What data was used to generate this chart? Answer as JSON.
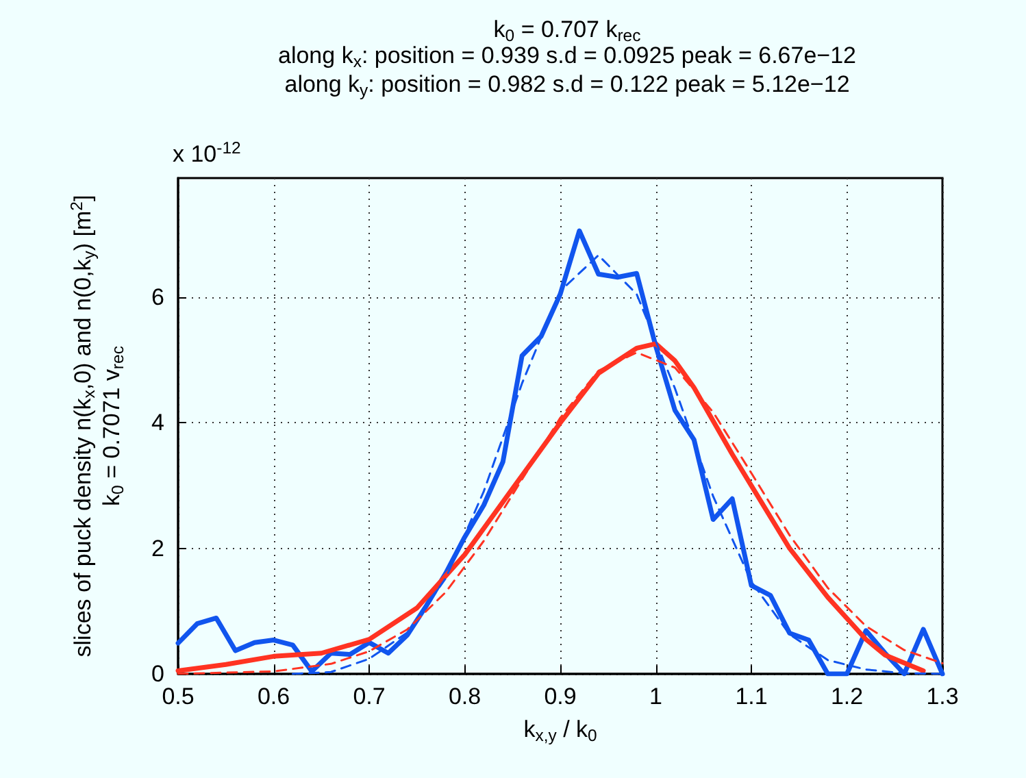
{
  "chart_data": {
    "type": "line",
    "title": "k$_{0}$ = 0.707 k$_{rec}$",
    "subtitle": "along k$_{x}$: position = 0.939 s.d = 0.0925 peak = 6.67e−12\nalong k$_{y}$: position = 0.982 s.d = 0.122 peak = 5.12e−12",
    "xlabel": "k$_{x,y}$ / k$_{0}$",
    "ylabel": "slices of puck density n(k$_{x}$,0) and n(0,k$_{y}$) [m$^{2}$]\nk$_{0}$ = 0.7071 v$_{rec}$",
    "annotations": [
      "x 10$^{-12}$"
    ],
    "series": [
      {
        "color": "#1155ee",
        "line_style": "solid",
        "x": [
          0.5,
          0.52,
          0.54,
          0.56,
          0.58,
          0.6,
          0.62,
          0.64,
          0.66,
          0.68,
          0.7,
          0.72,
          0.74,
          0.76,
          0.78,
          0.8,
          0.82,
          0.84,
          0.86,
          0.88,
          0.9,
          0.92,
          0.94,
          0.96,
          0.98,
          1.0,
          1.02,
          1.04,
          1.06,
          1.08,
          1.1,
          1.12,
          1.14,
          1.16,
          1.18,
          1.2,
          1.22,
          1.24,
          1.26,
          1.28,
          1.3
        ],
        "values": [
          0.49,
          0.8,
          0.89,
          0.37,
          0.5,
          0.54,
          0.46,
          0.04,
          0.33,
          0.31,
          0.5,
          0.33,
          0.62,
          1.09,
          1.6,
          2.18,
          2.69,
          3.38,
          5.07,
          5.38,
          6.05,
          7.06,
          6.37,
          6.32,
          6.38,
          5.22,
          4.2,
          3.73,
          2.46,
          2.79,
          1.41,
          1.25,
          0.65,
          0.54,
          0,
          0,
          0.69,
          0.33,
          0,
          0.71,
          0
        ]
      },
      {
        "color": "#1155ee",
        "line_style": "dashed",
        "x": [
          0.62,
          0.66,
          0.7,
          0.74,
          0.78,
          0.82,
          0.86,
          0.9,
          0.94,
          0.98,
          1.02,
          1.06,
          1.1,
          1.14,
          1.18,
          1.22,
          1.26,
          1.3
        ],
        "values": [
          0.0,
          0.03,
          0.24,
          0.66,
          1.52,
          2.91,
          4.63,
          6.1,
          6.67,
          6.05,
          4.55,
          2.83,
          1.47,
          0.63,
          0.22,
          0.07,
          0.01,
          0.0
        ]
      },
      {
        "color": "#ff3322",
        "line_style": "solid",
        "x": [
          0.5,
          0.55,
          0.6,
          0.65,
          0.7,
          0.75,
          0.8,
          0.85,
          0.9,
          0.94,
          0.98,
          1.0,
          1.02,
          1.04,
          1.08,
          1.1,
          1.14,
          1.18,
          1.22,
          1.24,
          1.28
        ],
        "values": [
          0.05,
          0.15,
          0.28,
          0.33,
          0.55,
          1.05,
          1.9,
          2.95,
          4.0,
          4.79,
          5.19,
          5.26,
          4.99,
          4.56,
          3.5,
          3.0,
          2.0,
          1.22,
          0.55,
          0.3,
          0.05
        ]
      },
      {
        "color": "#ff3322",
        "line_style": "dashed",
        "x": [
          0.5,
          0.6,
          0.66,
          0.7,
          0.74,
          0.78,
          0.82,
          0.86,
          0.9,
          0.94,
          0.98,
          1.02,
          1.06,
          1.1,
          1.14,
          1.18,
          1.22,
          1.26,
          1.3
        ],
        "values": [
          0.0,
          0.04,
          0.16,
          0.36,
          0.71,
          1.3,
          2.12,
          3.1,
          4.08,
          4.83,
          5.12,
          4.88,
          4.17,
          3.2,
          2.21,
          1.37,
          0.76,
          0.38,
          0.17
        ]
      }
    ],
    "xlim": [
      0.5,
      1.3
    ],
    "xticks": [
      0.5,
      0.6,
      0.7,
      0.8,
      0.9,
      1,
      1.1,
      1.2,
      1.3
    ],
    "ylim": [
      0,
      7.9
    ],
    "yticks": [
      0,
      2,
      4,
      6
    ],
    "grid": true,
    "marker": "none"
  }
}
